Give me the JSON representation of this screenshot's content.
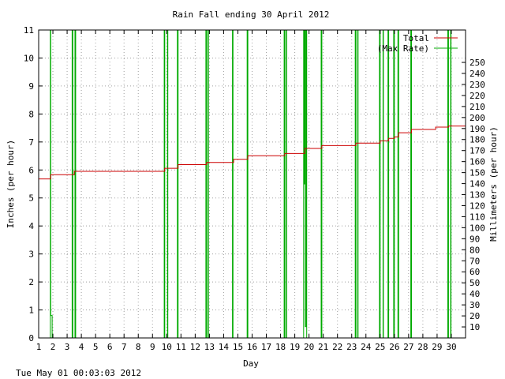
{
  "chart_data": {
    "type": "line",
    "title": "Rain Fall ending 30 April 2012",
    "xlabel": "Day",
    "ylabel": "Inches (per hour)",
    "y2label": "Millimeters (per hour)",
    "xlim": [
      1,
      31
    ],
    "ylim": [
      0,
      11
    ],
    "y2lim": [
      0,
      279.4
    ],
    "grid": true,
    "legend_position": "top-right",
    "x_ticks": [
      1,
      2,
      3,
      4,
      5,
      6,
      7,
      8,
      9,
      10,
      11,
      12,
      13,
      14,
      15,
      16,
      17,
      18,
      19,
      20,
      21,
      22,
      23,
      24,
      25,
      26,
      27,
      28,
      29,
      30
    ],
    "x_tick_labels": [
      "1",
      "2",
      "3",
      "4",
      "5",
      "6",
      "7",
      "8",
      "9",
      "10",
      "11",
      "12",
      "13",
      "14",
      "15",
      "16",
      "17",
      "18",
      "19",
      "20",
      "21",
      "22",
      "23",
      "24",
      "25",
      "26",
      "27",
      "28",
      "29",
      "30"
    ],
    "y_ticks": [
      0,
      1,
      2,
      3,
      4,
      5,
      6,
      7,
      8,
      9,
      10,
      11
    ],
    "y_tick_labels": [
      "0",
      "1",
      "2",
      "3",
      "4",
      "5",
      "6",
      "7",
      "8",
      "9",
      "10",
      "11"
    ],
    "y2_ticks": [
      10,
      20,
      30,
      40,
      50,
      60,
      70,
      80,
      90,
      100,
      110,
      120,
      130,
      140,
      150,
      160,
      170,
      180,
      190,
      200,
      210,
      220,
      230,
      240,
      250
    ],
    "y2_tick_labels": [
      "10",
      "20",
      "30",
      "40",
      "50",
      "60",
      "70",
      "80",
      "90",
      "100",
      "110",
      "120",
      "130",
      "140",
      "150",
      "160",
      "170",
      "180",
      "190",
      "200",
      "210",
      "220",
      "230",
      "240",
      "250"
    ],
    "series": [
      {
        "name": "Total",
        "color": "#cc0000",
        "step": true,
        "points": [
          [
            1.0,
            5.68
          ],
          [
            1.85,
            5.68
          ],
          [
            1.85,
            5.83
          ],
          [
            3.5,
            5.83
          ],
          [
            3.5,
            5.95
          ],
          [
            9.85,
            5.95
          ],
          [
            9.85,
            6.06
          ],
          [
            10.8,
            6.06
          ],
          [
            10.8,
            6.19
          ],
          [
            12.8,
            6.19
          ],
          [
            12.8,
            6.27
          ],
          [
            14.7,
            6.27
          ],
          [
            14.7,
            6.38
          ],
          [
            15.7,
            6.38
          ],
          [
            15.7,
            6.51
          ],
          [
            18.3,
            6.51
          ],
          [
            18.3,
            6.59
          ],
          [
            19.7,
            6.59
          ],
          [
            19.7,
            6.77
          ],
          [
            20.9,
            6.77
          ],
          [
            20.9,
            6.87
          ],
          [
            23.3,
            6.87
          ],
          [
            23.3,
            6.96
          ],
          [
            25.0,
            6.96
          ],
          [
            25.0,
            7.04
          ],
          [
            25.6,
            7.04
          ],
          [
            25.6,
            7.13
          ],
          [
            26.0,
            7.13
          ],
          [
            26.0,
            7.18
          ],
          [
            26.3,
            7.18
          ],
          [
            26.3,
            7.33
          ],
          [
            27.2,
            7.33
          ],
          [
            27.2,
            7.45
          ],
          [
            28.9,
            7.45
          ],
          [
            28.9,
            7.53
          ],
          [
            29.8,
            7.53
          ],
          [
            29.8,
            7.57
          ],
          [
            31.0,
            7.57
          ]
        ]
      },
      {
        "name": "(Max Rate)",
        "color": "#00aa00",
        "step": false,
        "points": [
          [
            1.0,
            0
          ],
          [
            1.82,
            0
          ],
          [
            1.82,
            11
          ],
          [
            1.85,
            11
          ],
          [
            1.85,
            0.8
          ],
          [
            1.95,
            0.8
          ],
          [
            1.95,
            0
          ],
          [
            3.35,
            0
          ],
          [
            3.35,
            11
          ],
          [
            3.4,
            11
          ],
          [
            3.4,
            0
          ],
          [
            3.55,
            0
          ],
          [
            3.55,
            11
          ],
          [
            3.6,
            11
          ],
          [
            3.6,
            0
          ],
          [
            9.82,
            0
          ],
          [
            9.82,
            11
          ],
          [
            9.86,
            11
          ],
          [
            9.86,
            0
          ],
          [
            10.05,
            0
          ],
          [
            10.05,
            11
          ],
          [
            10.08,
            11
          ],
          [
            10.08,
            0
          ],
          [
            10.75,
            0
          ],
          [
            10.75,
            11
          ],
          [
            10.8,
            11
          ],
          [
            10.8,
            0
          ],
          [
            12.75,
            0
          ],
          [
            12.75,
            11
          ],
          [
            12.8,
            11
          ],
          [
            12.8,
            0
          ],
          [
            12.9,
            0
          ],
          [
            12.9,
            11
          ],
          [
            12.93,
            11
          ],
          [
            12.93,
            0
          ],
          [
            14.62,
            0
          ],
          [
            14.62,
            11
          ],
          [
            14.66,
            11
          ],
          [
            14.66,
            0
          ],
          [
            15.65,
            0
          ],
          [
            15.65,
            11
          ],
          [
            15.7,
            11
          ],
          [
            15.7,
            0
          ],
          [
            18.25,
            0
          ],
          [
            18.25,
            11
          ],
          [
            18.3,
            11
          ],
          [
            18.3,
            0
          ],
          [
            18.4,
            0
          ],
          [
            18.4,
            11
          ],
          [
            18.43,
            11
          ],
          [
            18.43,
            0
          ],
          [
            19.62,
            0
          ],
          [
            19.62,
            11
          ],
          [
            19.66,
            11
          ],
          [
            19.66,
            5.5
          ],
          [
            19.7,
            5.5
          ],
          [
            19.7,
            11
          ],
          [
            19.74,
            11
          ],
          [
            19.74,
            0.4
          ],
          [
            19.8,
            0.4
          ],
          [
            19.8,
            11
          ],
          [
            19.84,
            11
          ],
          [
            19.84,
            0
          ],
          [
            20.85,
            0
          ],
          [
            20.85,
            11
          ],
          [
            20.9,
            11
          ],
          [
            20.9,
            0
          ],
          [
            23.25,
            0
          ],
          [
            23.25,
            11
          ],
          [
            23.3,
            11
          ],
          [
            23.3,
            0
          ],
          [
            23.42,
            0
          ],
          [
            23.42,
            11
          ],
          [
            23.45,
            11
          ],
          [
            23.45,
            0
          ],
          [
            24.95,
            0
          ],
          [
            24.95,
            11
          ],
          [
            25.0,
            11
          ],
          [
            25.0,
            0
          ],
          [
            25.2,
            0
          ],
          [
            25.2,
            11
          ],
          [
            25.23,
            11
          ],
          [
            25.23,
            0
          ],
          [
            25.55,
            0
          ],
          [
            25.55,
            11
          ],
          [
            25.6,
            11
          ],
          [
            25.6,
            0
          ],
          [
            25.95,
            0
          ],
          [
            25.95,
            11
          ],
          [
            26.0,
            11
          ],
          [
            26.0,
            0
          ],
          [
            26.25,
            0
          ],
          [
            26.25,
            11
          ],
          [
            26.3,
            11
          ],
          [
            26.3,
            0
          ],
          [
            27.15,
            0
          ],
          [
            27.15,
            11
          ],
          [
            27.2,
            11
          ],
          [
            27.2,
            0
          ],
          [
            29.75,
            0
          ],
          [
            29.75,
            11
          ],
          [
            29.8,
            11
          ],
          [
            29.8,
            0
          ],
          [
            29.95,
            0
          ],
          [
            29.95,
            11
          ],
          [
            29.98,
            11
          ],
          [
            29.98,
            0
          ],
          [
            31.0,
            0
          ]
        ]
      }
    ]
  },
  "footer": {
    "timestamp": "Tue May 01 00:03:03 2012"
  }
}
